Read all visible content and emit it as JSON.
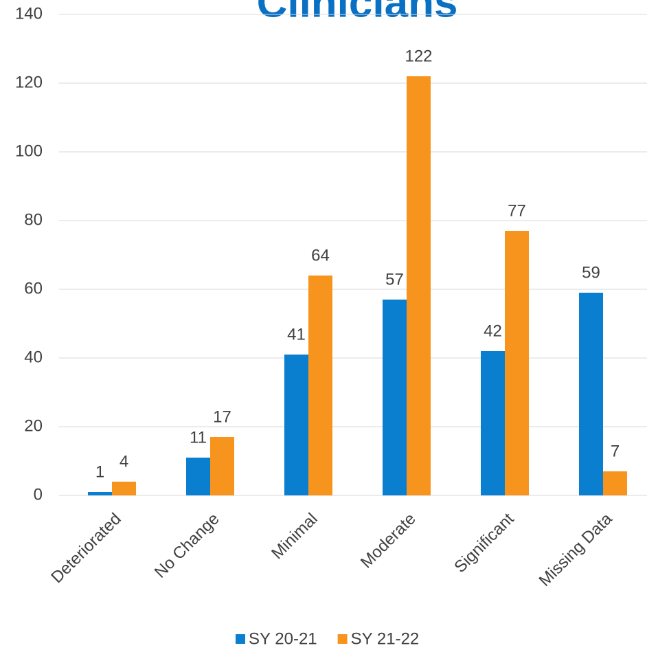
{
  "chart_data": {
    "type": "bar",
    "title": "Clinicians",
    "categories": [
      "Deteriorated",
      "No Change",
      "Minimal",
      "Moderate",
      "Significant",
      "Missing Data"
    ],
    "series": [
      {
        "name": "SY 20-21",
        "color": "#0a7fcf",
        "values": [
          1,
          11,
          41,
          57,
          42,
          59
        ]
      },
      {
        "name": "SY 21-22",
        "color": "#f7941d",
        "values": [
          4,
          17,
          64,
          122,
          77,
          7
        ]
      }
    ],
    "ylim": [
      0,
      140
    ],
    "yticks": [
      0,
      20,
      40,
      60,
      80,
      100,
      120,
      140
    ],
    "grid": true,
    "legend": "bottom"
  }
}
